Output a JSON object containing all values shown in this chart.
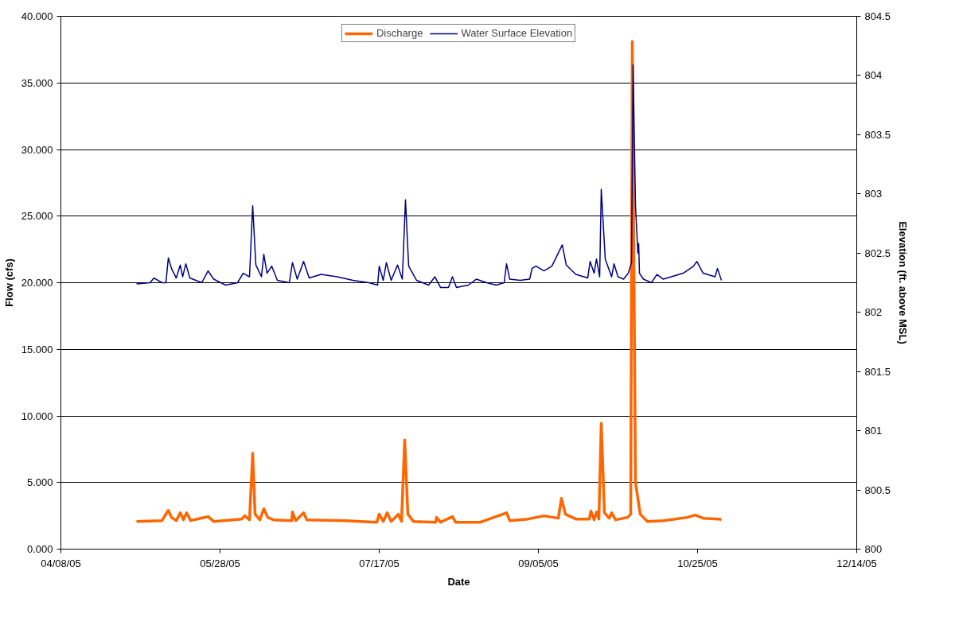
{
  "chart_data": {
    "type": "line",
    "xlabel": "Date",
    "ylabel": "Flow (cfs)",
    "y2label": "Elevation (ft. above MSL)",
    "xlim": [
      "2005-04-08",
      "2005-12-14"
    ],
    "xticks": [
      {
        "value": "2005-04-08",
        "label": "04/08/05"
      },
      {
        "value": "2005-05-28",
        "label": "05/28/05"
      },
      {
        "value": "2005-07-17",
        "label": "07/17/05"
      },
      {
        "value": "2005-09-05",
        "label": "09/05/05"
      },
      {
        "value": "2005-10-25",
        "label": "10/25/05"
      },
      {
        "value": "2005-12-14",
        "label": "12/14/05"
      }
    ],
    "ylim": [
      0,
      40
    ],
    "yticks": [
      {
        "value": 0,
        "label": "0.000"
      },
      {
        "value": 5,
        "label": "5.000"
      },
      {
        "value": 10,
        "label": "10.000"
      },
      {
        "value": 15,
        "label": "15.000"
      },
      {
        "value": 20,
        "label": "20.000"
      },
      {
        "value": 25,
        "label": "25.000"
      },
      {
        "value": 30,
        "label": "30.000"
      },
      {
        "value": 35,
        "label": "35.000"
      },
      {
        "value": 40,
        "label": "40.000"
      }
    ],
    "y2lim": [
      800,
      804.5
    ],
    "y2ticks": [
      800,
      800.5,
      801,
      801.5,
      802,
      802.5,
      803,
      803.5,
      804,
      804.5
    ],
    "grid": "y",
    "legend": "top",
    "marker": "none",
    "line_style": "solid",
    "series": [
      {
        "name": "Discharge",
        "color": "#ff6600",
        "x": [
          "2005-05-01T18:00",
          "2005-05-09T18:00",
          "2005-05-11T18:00",
          "2005-05-12T18:00",
          "2005-05-14T06:00",
          "2005-05-15T12:00",
          "2005-05-16T12:00",
          "2005-05-17T12:00",
          "2005-05-18T18:00",
          "2005-05-24T06:00",
          "2005-05-26",
          "2005-06-03T18:00",
          "2005-06-04T18:00",
          "2005-06-06T06:00",
          "2005-06-07T06:00",
          "2005-06-08",
          "2005-06-09T12:00",
          "2005-06-10T18:00",
          "2005-06-12",
          "2005-06-13T18:00",
          "2005-06-19T12:00",
          "2005-06-19T18:00",
          "2005-06-20T18:00",
          "2005-06-23T06:00",
          "2005-06-24T06:00",
          "2005-07-06T06:00",
          "2005-07-16T06:00",
          "2005-07-17",
          "2005-07-18T06:00",
          "2005-07-19T12:00",
          "2005-07-20T18:00",
          "2005-07-23",
          "2005-07-24",
          "2005-07-25",
          "2005-07-26",
          "2005-07-27T18:00",
          "2005-08-03T18:00",
          "2005-08-04",
          "2005-08-05T06:00",
          "2005-08-09",
          "2005-08-10",
          "2005-08-17T18:00",
          "2005-08-26",
          "2005-08-27",
          "2005-09-01T18:00",
          "2005-09-06T18:00",
          "2005-09-11T06:00",
          "2005-09-12T06:00",
          "2005-09-13T12:00",
          "2005-09-16T18:00",
          "2005-09-21",
          "2005-09-21T12:00",
          "2005-09-22T12:00",
          "2005-09-23T06:00",
          "2005-09-24",
          "2005-09-24T18:00",
          "2005-09-25T18:00",
          "2005-09-27T06:00",
          "2005-09-28",
          "2005-09-29T06:00",
          "2005-10-03",
          "2005-10-04",
          "2005-10-04T12:00",
          "2005-10-05T12:00",
          "2005-10-06T06:00",
          "2005-10-07",
          "2005-10-09T06:00",
          "2005-10-14T06:00",
          "2005-10-21T18:00",
          "2005-10-24T06:00",
          "2005-10-26T18:00",
          "2005-10-31T18:00",
          "2005-11-01T12:00"
        ],
        "values": [
          2.08,
          2.14,
          2.91,
          2.38,
          2.14,
          2.73,
          2.2,
          2.73,
          2.14,
          2.44,
          2.08,
          2.26,
          2.5,
          2.2,
          7.19,
          2.62,
          2.2,
          3.03,
          2.38,
          2.2,
          2.14,
          2.79,
          2.14,
          2.73,
          2.2,
          2.14,
          2.02,
          2.62,
          2.08,
          2.73,
          2.08,
          2.62,
          2.08,
          8.2,
          2.62,
          2.08,
          2.02,
          2.38,
          2.02,
          2.44,
          2.02,
          2.02,
          2.73,
          2.14,
          2.26,
          2.5,
          2.32,
          3.8,
          2.62,
          2.26,
          2.26,
          2.85,
          2.2,
          2.79,
          2.26,
          9.45,
          2.73,
          2.32,
          2.73,
          2.2,
          2.38,
          2.62,
          38.1,
          4.99,
          3.8,
          2.62,
          2.08,
          2.14,
          2.38,
          2.56,
          2.32,
          2.26,
          2.2
        ]
      },
      {
        "name": "Water Surface Elevation",
        "color": "#000080",
        "axis": "y2",
        "x": [
          "2005-05-01T18:00",
          "2005-05-06",
          "2005-05-07T06:00",
          "2005-05-09T18:00",
          "2005-05-11",
          "2005-05-11T18:00",
          "2005-05-12T18:00",
          "2005-05-14T06:00",
          "2005-05-15T12:00",
          "2005-05-16T06:00",
          "2005-05-17T06:00",
          "2005-05-18T12:00",
          "2005-05-22T06:00",
          "2005-05-24T06:00",
          "2005-05-26",
          "2005-05-29T18:00",
          "2005-06-02T12:00",
          "2005-06-04T06:00",
          "2005-06-06T06:00",
          "2005-06-07T06:00",
          "2005-06-08T06:00",
          "2005-06-10",
          "2005-06-10T18:00",
          "2005-06-11T18:00",
          "2005-06-13T06:00",
          "2005-06-15",
          "2005-06-18T18:00",
          "2005-06-19T18:00",
          "2005-06-21T06:00",
          "2005-06-23T06:00",
          "2005-06-25",
          "2005-06-28T18:00",
          "2005-07-03T18:00",
          "2005-07-08T18:00",
          "2005-07-13T18:00",
          "2005-07-16T12:00",
          "2005-07-17",
          "2005-07-18T06:00",
          "2005-07-19T06:00",
          "2005-07-20T18:00",
          "2005-07-22T18:00",
          "2005-07-24T06:00",
          "2005-07-25T06:00",
          "2005-07-26T06:00",
          "2005-07-28T18:00",
          "2005-08-01T12:00",
          "2005-08-03T12:00",
          "2005-08-05T06:00",
          "2005-08-07T18:00",
          "2005-08-09",
          "2005-08-10T06:00",
          "2005-08-14",
          "2005-08-16T12:00",
          "2005-08-19T18:00",
          "2005-08-22T18:00",
          "2005-08-25T06:00",
          "2005-08-26",
          "2005-08-27",
          "2005-08-30T06:00",
          "2005-09-02T06:00",
          "2005-09-03",
          "2005-09-04T06:00",
          "2005-09-06T18:00",
          "2005-09-09T06:00",
          "2005-09-12T12:00",
          "2005-09-13T18:00",
          "2005-09-16T18:00",
          "2005-09-20T12:00",
          "2005-09-21T06:00",
          "2005-09-22T12:00",
          "2005-09-23T06:00",
          "2005-09-24T06:00",
          "2005-09-24T18:00",
          "2005-09-26",
          "2005-09-28",
          "2005-09-28T18:00",
          "2005-09-30",
          "2005-10-01T18:00",
          "2005-10-03T06:00",
          "2005-10-04T06:00",
          "2005-10-04T18:00",
          "2005-10-05T12:00",
          "2005-10-06T06:00",
          "2005-10-06T12:00",
          "2005-10-06T18:00",
          "2005-10-08",
          "2005-10-10T12:00",
          "2005-10-12T06:00",
          "2005-10-14T06:00",
          "2005-10-16T18:00",
          "2005-10-20T12:00",
          "2005-10-23T18:00",
          "2005-10-24T18:00",
          "2005-10-26T18:00",
          "2005-10-30T12:00",
          "2005-10-31T06:00",
          "2005-11-01T12:00"
        ],
        "values": [
          802.24,
          802.25,
          802.29,
          802.25,
          802.25,
          802.46,
          802.37,
          802.29,
          802.4,
          802.3,
          802.41,
          802.29,
          802.25,
          802.35,
          802.28,
          802.23,
          802.25,
          802.33,
          802.3,
          802.9,
          802.4,
          802.3,
          802.49,
          802.33,
          802.39,
          802.27,
          802.25,
          802.42,
          802.28,
          802.43,
          802.29,
          802.32,
          802.3,
          802.27,
          802.25,
          802.23,
          802.39,
          802.27,
          802.42,
          802.27,
          802.4,
          802.28,
          802.95,
          802.39,
          802.27,
          802.23,
          802.3,
          802.21,
          802.21,
          802.3,
          802.21,
          802.23,
          802.28,
          802.25,
          802.23,
          802.25,
          802.41,
          802.28,
          802.27,
          802.28,
          802.37,
          802.39,
          802.35,
          802.39,
          802.57,
          802.4,
          802.32,
          802.29,
          802.43,
          802.33,
          802.45,
          802.3,
          803.04,
          802.45,
          802.3,
          802.41,
          802.3,
          802.28,
          802.33,
          802.42,
          804.09,
          802.9,
          802.5,
          802.58,
          802.33,
          802.28,
          802.25,
          802.32,
          802.28,
          802.3,
          802.33,
          802.39,
          802.43,
          802.33,
          802.3,
          802.37,
          802.27
        ]
      }
    ]
  }
}
